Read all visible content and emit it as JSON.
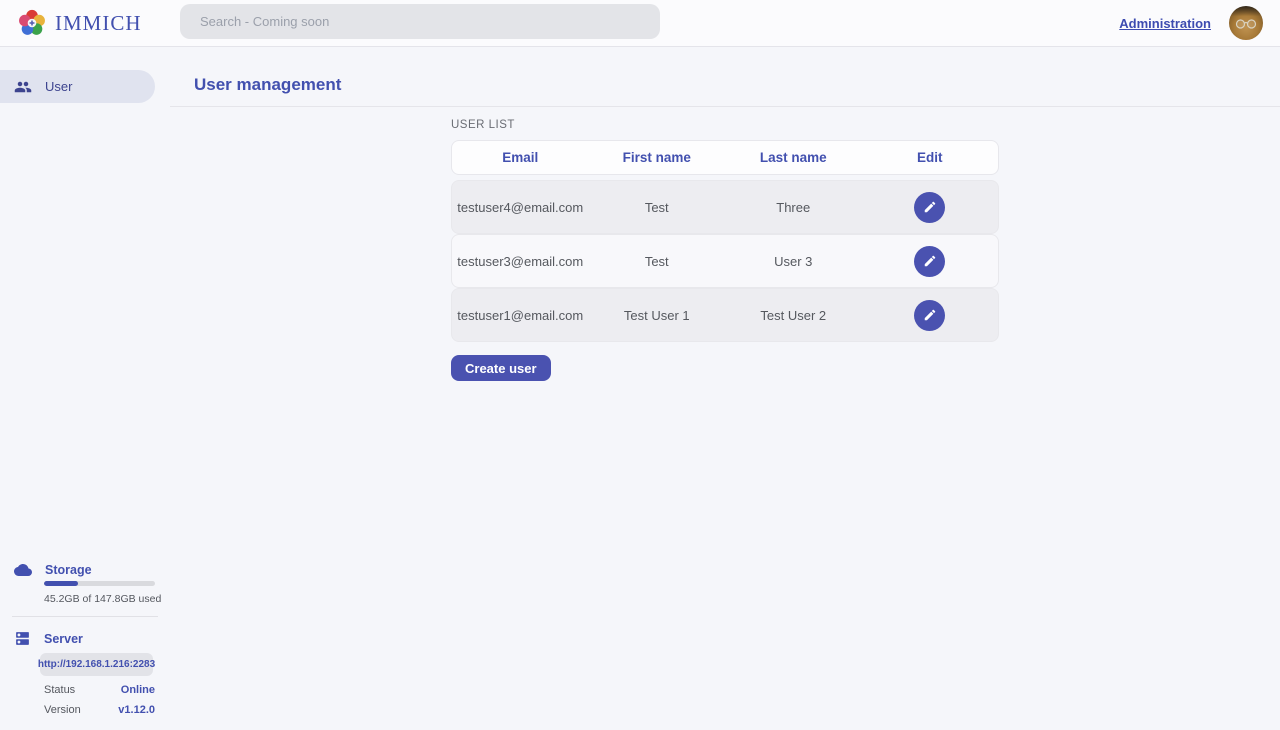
{
  "colors": {
    "primary": "#4250af",
    "button": "#4a52b0",
    "page_bg": "#f5f6fa",
    "selected_pill": "#e0e3ef"
  },
  "topbar": {
    "app_name": "IMMICH",
    "search_placeholder": "Search - Coming soon",
    "admin_link": "Administration"
  },
  "sidebar": {
    "items": [
      {
        "label": "User",
        "icon": "users-icon",
        "selected": true
      }
    ],
    "storage": {
      "title": "Storage",
      "icon": "cloud-icon",
      "usage_text": "45.2GB of 147.8GB used",
      "percent_used": 30.6
    },
    "server": {
      "title": "Server",
      "icon": "server-icon",
      "url": "http://192.168.1.216:2283",
      "status_label": "Status",
      "status_value": "Online",
      "version_label": "Version",
      "version_value": "v1.12.0"
    }
  },
  "main": {
    "title": "User management",
    "section_label": "USER LIST",
    "table": {
      "headers": [
        "Email",
        "First name",
        "Last name",
        "Edit"
      ],
      "rows": [
        {
          "email": "testuser4@email.com",
          "first_name": "Test",
          "last_name": "Three"
        },
        {
          "email": "testuser3@email.com",
          "first_name": "Test",
          "last_name": "User 3"
        },
        {
          "email": "testuser1@email.com",
          "first_name": "Test User 1",
          "last_name": "Test User 2"
        }
      ]
    },
    "create_button": "Create user"
  }
}
